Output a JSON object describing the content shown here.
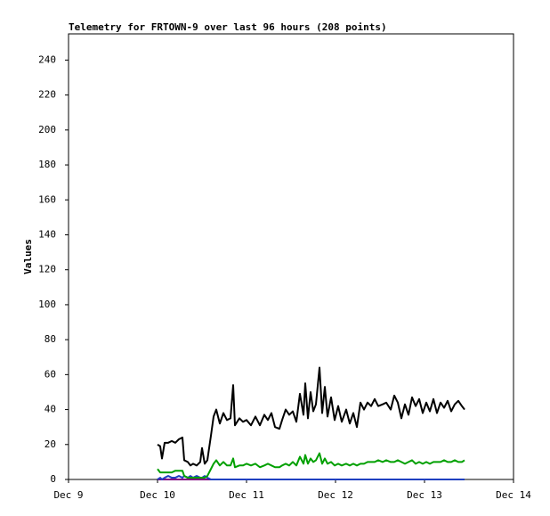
{
  "chart_data": {
    "type": "line",
    "title": "Telemetry for FRTOWN-9 over last 96 hours (208 points)",
    "y_label": "Values",
    "xlim": [
      9,
      14
    ],
    "xticks": [
      {
        "value": 9,
        "label": "Dec 9"
      },
      {
        "value": 10,
        "label": "Dec 10"
      },
      {
        "value": 11,
        "label": "Dec 11"
      },
      {
        "value": 12,
        "label": "Dec 12"
      },
      {
        "value": 13,
        "label": "Dec 13"
      },
      {
        "value": 14,
        "label": "Dec 14"
      }
    ],
    "ylim": [
      0,
      255
    ],
    "yticks": [
      0,
      20,
      40,
      60,
      80,
      100,
      120,
      140,
      160,
      180,
      200,
      220,
      240
    ],
    "grid": false,
    "x": [
      10.0,
      10.03,
      10.05,
      10.08,
      10.12,
      10.16,
      10.2,
      10.24,
      10.28,
      10.3,
      10.34,
      10.37,
      10.4,
      10.44,
      10.48,
      10.5,
      10.53,
      10.56,
      10.6,
      10.63,
      10.66,
      10.7,
      10.74,
      10.78,
      10.82,
      10.85,
      10.87,
      10.92,
      10.96,
      11.0,
      11.05,
      11.1,
      11.15,
      11.2,
      11.24,
      11.28,
      11.32,
      11.37,
      11.4,
      11.44,
      11.48,
      11.52,
      11.56,
      11.6,
      11.64,
      11.66,
      11.69,
      11.72,
      11.75,
      11.78,
      11.82,
      11.85,
      11.88,
      11.91,
      11.95,
      11.99,
      12.03,
      12.07,
      12.12,
      12.16,
      12.2,
      12.24,
      12.28,
      12.32,
      12.36,
      12.4,
      12.44,
      12.48,
      12.53,
      12.57,
      12.62,
      12.66,
      12.7,
      12.74,
      12.78,
      12.82,
      12.86,
      12.9,
      12.94,
      12.98,
      13.02,
      13.06,
      13.1,
      13.14,
      13.18,
      13.22,
      13.26,
      13.3,
      13.34,
      13.38,
      13.42,
      13.45
    ],
    "series": [
      {
        "color": "#800080",
        "values": [
          0,
          0,
          0,
          0,
          0,
          0,
          0,
          0,
          0,
          0,
          0,
          0,
          0,
          0,
          0,
          0,
          0,
          0,
          0,
          0,
          0,
          0,
          0,
          0,
          0,
          0,
          0,
          0,
          0,
          0,
          0,
          0,
          0,
          0,
          0,
          0,
          0,
          0,
          0,
          0,
          0,
          0,
          0,
          0,
          0,
          0,
          0,
          0,
          0,
          0,
          0,
          0,
          0,
          0,
          0,
          0,
          0,
          0,
          0,
          0,
          0,
          0,
          0,
          0,
          0,
          0,
          0,
          0,
          0,
          0,
          0,
          0,
          0,
          0,
          0,
          0,
          0,
          0,
          0,
          0,
          0,
          0,
          0,
          0,
          0,
          0,
          0,
          0,
          0,
          0,
          0,
          0
        ]
      },
      {
        "color": "#2040c0",
        "values": [
          0,
          1,
          0,
          1,
          2,
          1,
          1,
          2,
          1,
          2,
          1,
          2,
          1,
          2,
          1,
          1,
          2,
          1,
          0,
          0,
          0,
          0,
          0,
          0,
          0,
          0,
          0,
          0,
          0,
          0,
          0,
          0,
          0,
          0,
          0,
          0,
          0,
          0,
          0,
          0,
          0,
          0,
          0,
          0,
          0,
          0,
          0,
          0,
          0,
          0,
          0,
          0,
          0,
          0,
          0,
          0,
          0,
          0,
          0,
          0,
          0,
          0,
          0,
          0,
          0,
          0,
          0,
          0,
          0,
          0,
          0,
          0,
          0,
          0,
          0,
          0,
          0,
          0,
          0,
          0,
          0,
          0,
          0,
          0,
          0,
          0,
          0,
          0,
          0,
          0,
          0,
          0
        ]
      },
      {
        "color": "#00a000",
        "values": [
          6,
          4,
          4,
          4,
          4,
          4,
          5,
          5,
          5,
          2,
          1,
          1,
          1,
          1,
          1,
          1,
          1,
          2,
          6,
          9,
          11,
          8,
          10,
          8,
          8,
          12,
          7,
          8,
          8,
          9,
          8,
          9,
          7,
          8,
          9,
          8,
          7,
          7,
          8,
          9,
          8,
          10,
          8,
          13,
          9,
          14,
          9,
          12,
          10,
          11,
          15,
          9,
          12,
          9,
          10,
          8,
          9,
          8,
          9,
          8,
          9,
          8,
          9,
          9,
          10,
          10,
          10,
          11,
          10,
          11,
          10,
          10,
          11,
          10,
          9,
          10,
          11,
          9,
          10,
          9,
          10,
          9,
          10,
          10,
          10,
          11,
          10,
          10,
          11,
          10,
          10,
          11
        ]
      },
      {
        "color": "#000000",
        "values": [
          20,
          19,
          12,
          21,
          21,
          22,
          21,
          23,
          24,
          11,
          10,
          8,
          9,
          8,
          10,
          18,
          9,
          11,
          25,
          36,
          40,
          32,
          38,
          34,
          35,
          54,
          31,
          35,
          33,
          34,
          31,
          36,
          31,
          37,
          34,
          38,
          30,
          29,
          34,
          40,
          37,
          39,
          33,
          49,
          37,
          55,
          35,
          50,
          39,
          43,
          64,
          38,
          53,
          36,
          47,
          34,
          42,
          33,
          40,
          32,
          38,
          30,
          44,
          40,
          44,
          42,
          46,
          42,
          43,
          44,
          40,
          48,
          44,
          35,
          43,
          37,
          47,
          42,
          46,
          38,
          44,
          39,
          46,
          38,
          44,
          41,
          45,
          39,
          43,
          45,
          42,
          40
        ]
      }
    ]
  }
}
